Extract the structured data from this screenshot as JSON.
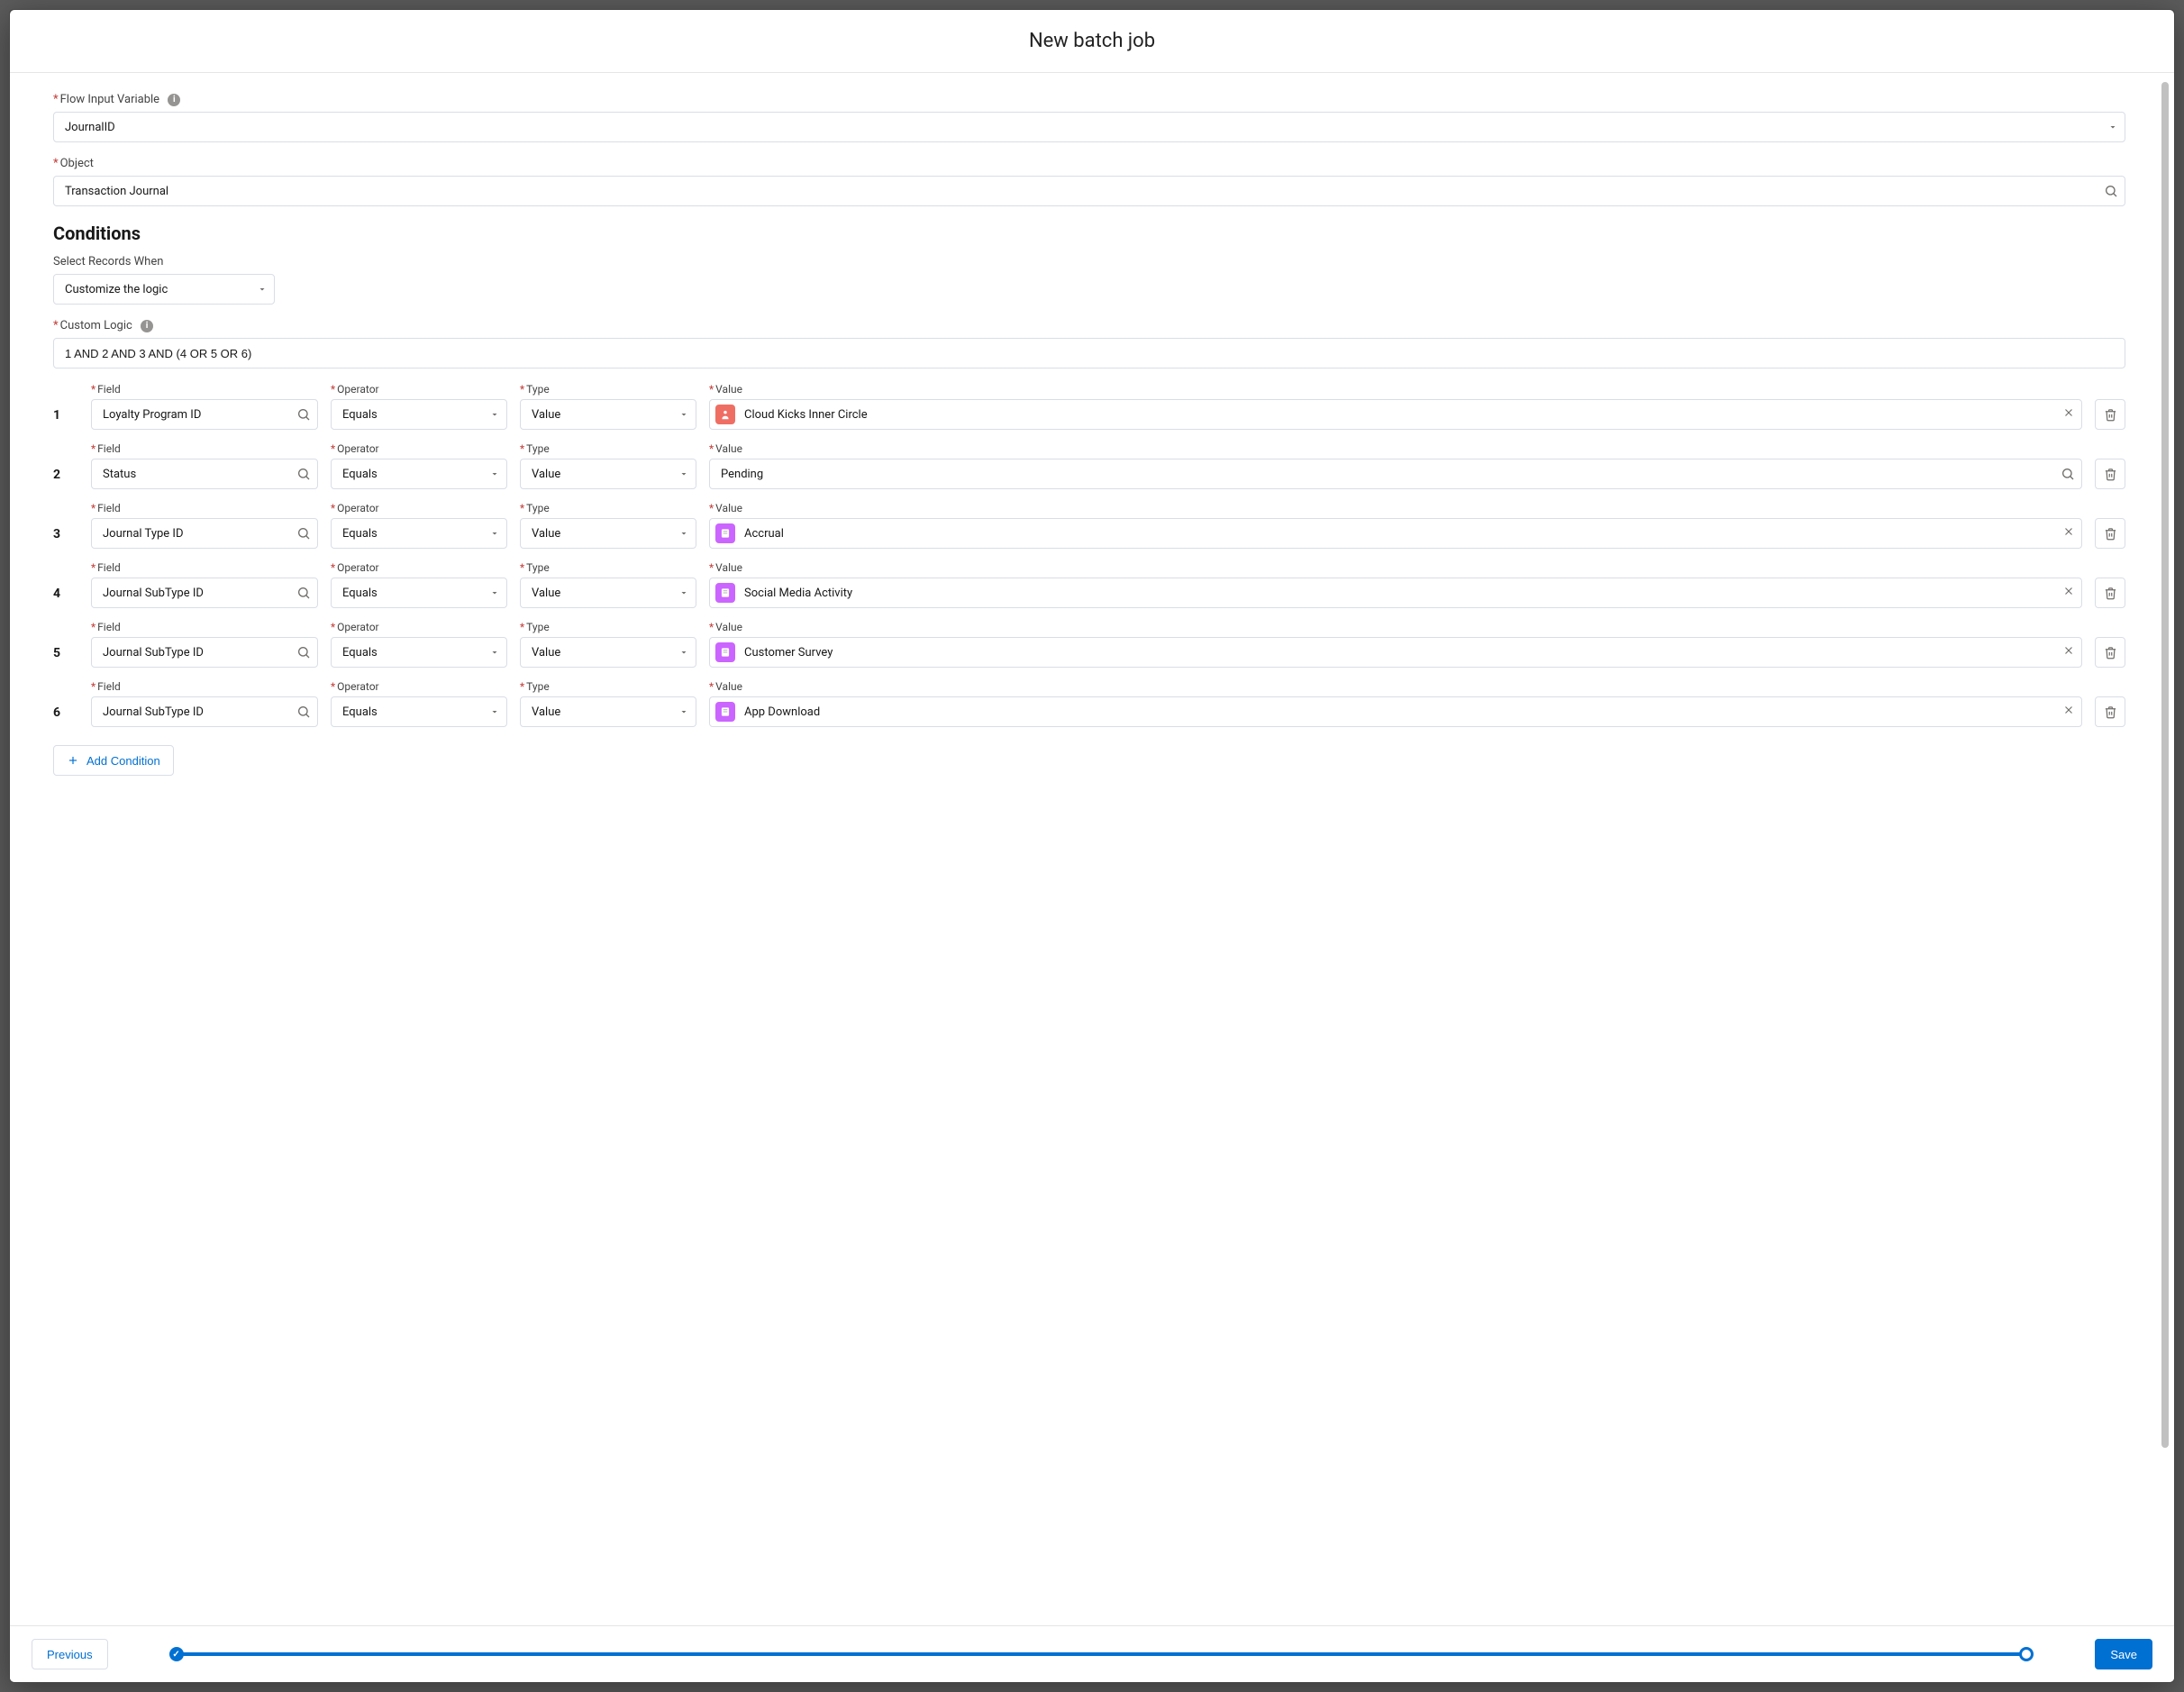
{
  "modal": {
    "title": "New batch job"
  },
  "flowInput": {
    "label": "Flow Input Variable",
    "value": "JournalID"
  },
  "object": {
    "label": "Object",
    "value": "Transaction Journal"
  },
  "conditions": {
    "heading": "Conditions",
    "select_label": "Select Records When",
    "select_value": "Customize the logic",
    "custom_logic_label": "Custom Logic",
    "custom_logic_value": "1 AND 2 AND 3 AND (4 OR 5 OR 6)",
    "column_labels": {
      "field": "Field",
      "operator": "Operator",
      "type": "Type",
      "value": "Value"
    },
    "rows": [
      {
        "num": "1",
        "field": "Loyalty Program ID",
        "operator": "Equals",
        "type": "Value",
        "value": "Cloud Kicks Inner Circle",
        "value_icon_bg": "#ef6e64",
        "value_icon": "badge",
        "has_clear": true
      },
      {
        "num": "2",
        "field": "Status",
        "operator": "Equals",
        "type": "Value",
        "value": "Pending",
        "value_icon_bg": "",
        "value_icon": "search",
        "has_clear": false
      },
      {
        "num": "3",
        "field": "Journal Type ID",
        "operator": "Equals",
        "type": "Value",
        "value": "Accrual",
        "value_icon_bg": "#cb65ff",
        "value_icon": "book",
        "has_clear": true
      },
      {
        "num": "4",
        "field": "Journal SubType ID",
        "operator": "Equals",
        "type": "Value",
        "value": "Social Media Activity",
        "value_icon_bg": "#cb65ff",
        "value_icon": "book",
        "has_clear": true
      },
      {
        "num": "5",
        "field": "Journal SubType ID",
        "operator": "Equals",
        "type": "Value",
        "value": "Customer Survey",
        "value_icon_bg": "#cb65ff",
        "value_icon": "book",
        "has_clear": true
      },
      {
        "num": "6",
        "field": "Journal SubType ID",
        "operator": "Equals",
        "type": "Value",
        "value": "App Download",
        "value_icon_bg": "#cb65ff",
        "value_icon": "book",
        "has_clear": true
      }
    ],
    "add_label": "Add Condition"
  },
  "footer": {
    "previous": "Previous",
    "save": "Save"
  },
  "colors": {
    "brand": "#0070d2",
    "border": "#d8dde6",
    "required": "#c23934"
  }
}
